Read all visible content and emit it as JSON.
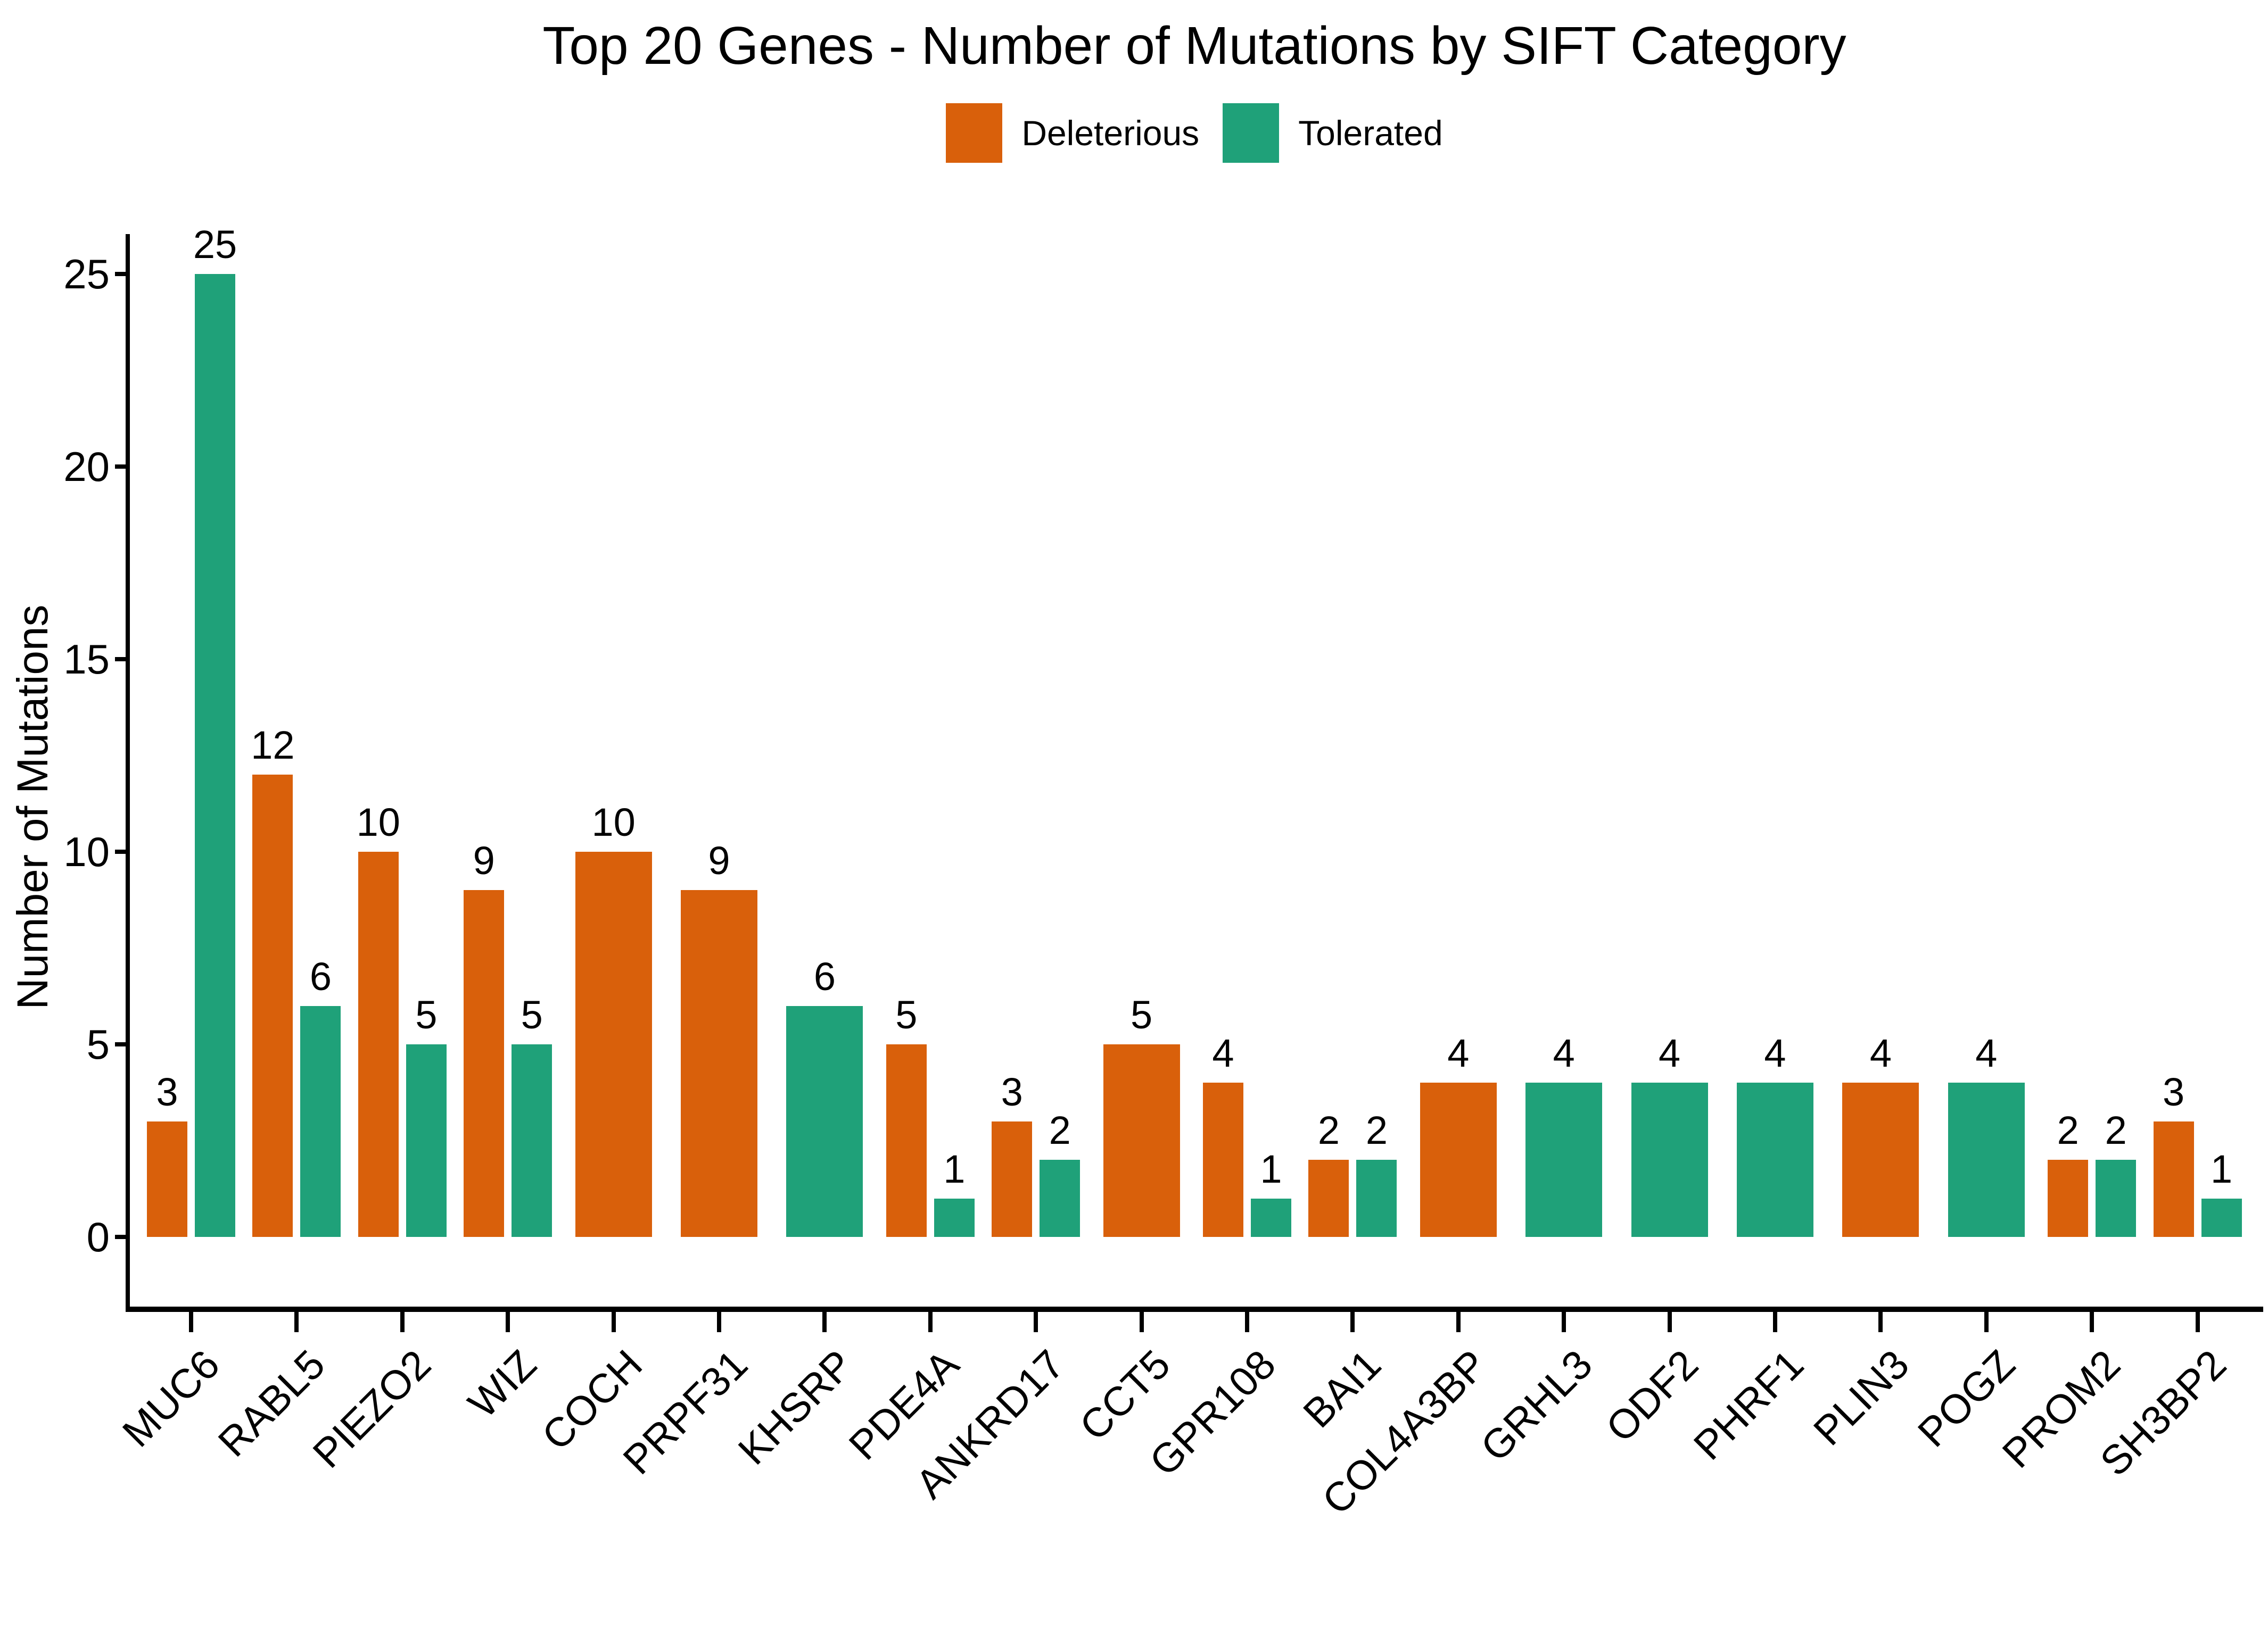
{
  "chart_data": {
    "type": "bar",
    "title": "Top 20 Genes - Number of Mutations by SIFT Category",
    "xlabel": "",
    "ylabel": "Number of Mutations",
    "yticks": [
      0,
      5,
      10,
      15,
      20,
      25
    ],
    "ylim": [
      0,
      26.5
    ],
    "grid": false,
    "legend_position": "top-center",
    "bar_value_labels": true,
    "categories": [
      "MUC6",
      "RABL5",
      "PIEZO2",
      "WIZ",
      "COCH",
      "PRPF31",
      "KHSRP",
      "PDE4A",
      "ANKRD17",
      "CCT5",
      "GPR108",
      "BAI1",
      "COL4A3BP",
      "GRHL3",
      "ODF2",
      "PHRF1",
      "PLIN3",
      "POGZ",
      "PROM2",
      "SH3BP2"
    ],
    "series": [
      {
        "name": "Deleterious",
        "color": "#D9600B",
        "values": [
          3,
          12,
          10,
          9,
          10,
          9,
          null,
          5,
          3,
          5,
          4,
          2,
          4,
          null,
          null,
          null,
          4,
          null,
          2,
          3
        ]
      },
      {
        "name": "Tolerated",
        "color": "#1FA179",
        "values": [
          25,
          6,
          5,
          5,
          null,
          null,
          6,
          1,
          2,
          null,
          1,
          2,
          null,
          4,
          4,
          4,
          null,
          4,
          2,
          1
        ]
      }
    ],
    "axis_color": "#000000",
    "text_color": "#000000"
  }
}
